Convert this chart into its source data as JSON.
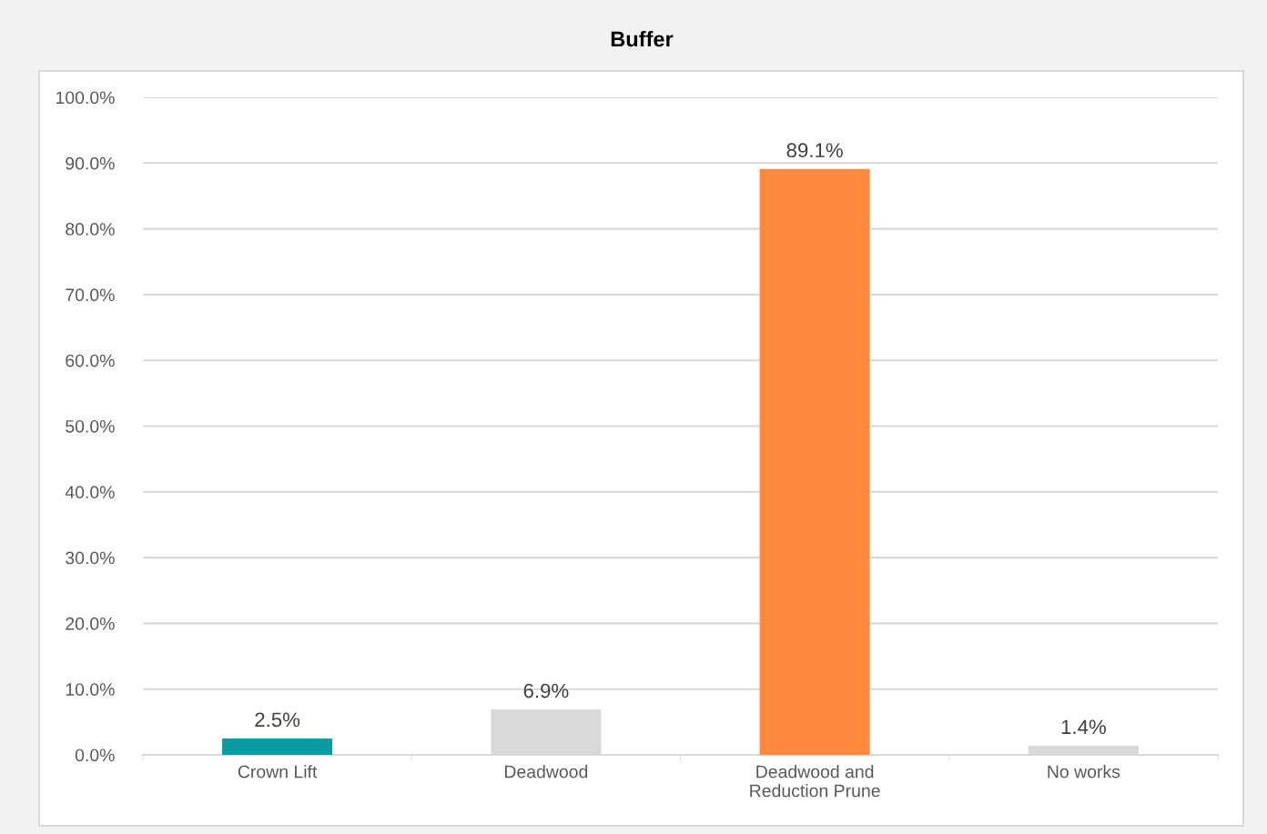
{
  "chart_data": {
    "type": "bar",
    "title": "Buffer",
    "categories": [
      "Crown Lift",
      "Deadwood",
      "Deadwood and\nReduction Prune",
      "No works"
    ],
    "values": [
      2.5,
      6.9,
      89.1,
      1.4
    ],
    "colors": [
      "#0a9aa0",
      "#d9d9d9",
      "#ff8a3d",
      "#d9d9d9"
    ],
    "value_labels": [
      "2.5%",
      "6.9%",
      "89.1%",
      "1.4%"
    ],
    "ylim": [
      0,
      100
    ],
    "yticks": [
      {
        "value": 0,
        "label": "0.0%"
      },
      {
        "value": 10,
        "label": "10.0%"
      },
      {
        "value": 20,
        "label": "20.0%"
      },
      {
        "value": 30,
        "label": "30.0%"
      },
      {
        "value": 40,
        "label": "40.0%"
      },
      {
        "value": 50,
        "label": "50.0%"
      },
      {
        "value": 60,
        "label": "60.0%"
      },
      {
        "value": 70,
        "label": "70.0%"
      },
      {
        "value": 80,
        "label": "80.0%"
      },
      {
        "value": 90,
        "label": "90.0%"
      },
      {
        "value": 100,
        "label": "100.0%"
      }
    ],
    "grid": "y",
    "legend": false
  }
}
